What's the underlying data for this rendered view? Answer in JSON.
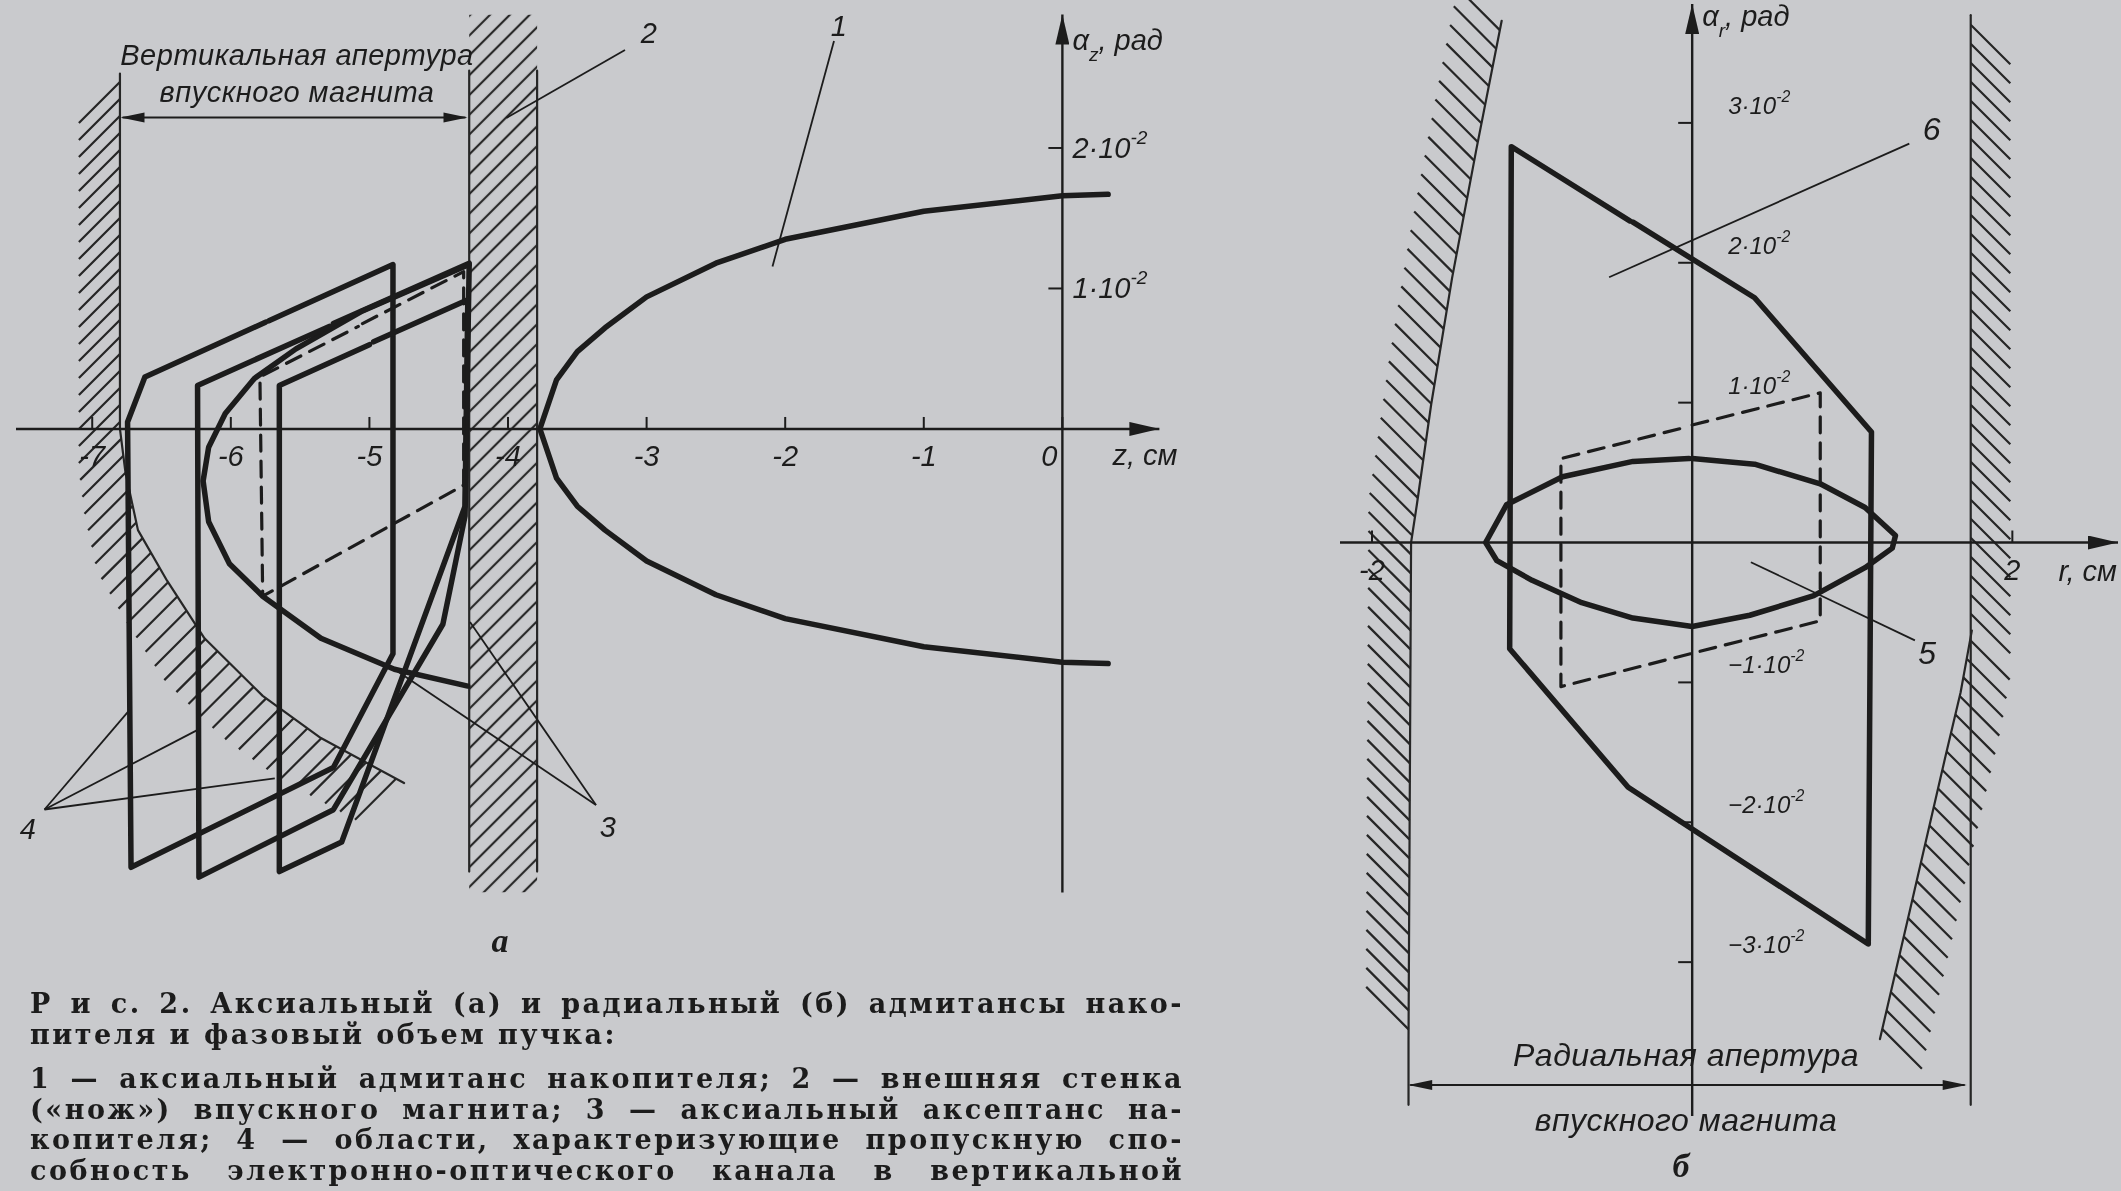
{
  "chart_data": [
    {
      "type": "line",
      "title": "а",
      "xlabel": "z, см",
      "ylabel": "α$_{z}$, рад",
      "xlim": [
        -7.55,
        0.7
      ],
      "ylim": [
        -0.033,
        0.0295
      ],
      "xticks": [
        -7,
        -6,
        -5,
        -4,
        -3,
        -2,
        -1,
        0
      ],
      "yticks": [
        {
          "value": 0.01,
          "label": "1·10$^{-2}$"
        },
        {
          "value": 0.02,
          "label": "2·10$^{-2}$"
        }
      ],
      "bands": [
        {
          "axis": "x",
          "from": -4.28,
          "to": -3.79,
          "color": "#2a2a2a"
        }
      ],
      "series": [
        {
          "color": "#1c1c1c",
          "x": [
            0.33,
            0,
            -1,
            -2,
            -2.5,
            -3,
            -3.3,
            -3.5,
            -3.65,
            -3.77,
            -3.65,
            -3.5,
            -3.3,
            -3,
            -2.5,
            -2,
            -1,
            0,
            0.33
          ],
          "values": [
            0.0167,
            0.0166,
            0.0155,
            0.0135,
            0.0118,
            0.0094,
            0.0072,
            0.0055,
            0.0035,
            0,
            -0.0035,
            -0.0055,
            -0.0072,
            -0.0094,
            -0.0118,
            -0.0135,
            -0.0155,
            -0.0166,
            -0.0167
          ]
        },
        {
          "color": "#262626",
          "x": [
            -6.8,
            -6.8,
            -6.76,
            -6.67,
            -6.46,
            -6.19,
            -5.77,
            -5.35,
            -4.75
          ],
          "values": [
            0.0253,
            0,
            -0.0031,
            -0.0072,
            -0.0108,
            -0.0149,
            -0.019,
            -0.022,
            -0.0252
          ]
        },
        {
          "color": "#262626",
          "x": [
            -4.28,
            -4.28
          ],
          "values": [
            0.0255,
            -0.0315
          ]
        },
        {
          "color": "#262626",
          "x": [
            -3.79,
            -3.79
          ],
          "values": [
            0.0255,
            -0.0315
          ]
        },
        {
          "color": "#1c1c1c",
          "x": [
            -4.28,
            -5.05,
            -5.53,
            -5.83,
            -6.04,
            -6.16,
            -6.2,
            -6.16,
            -6.01,
            -5.77,
            -5.35,
            -4.82,
            -4.29
          ],
          "values": [
            0.0117,
            0.0084,
            0.0057,
            0.0036,
            0.0011,
            -0.0013,
            -0.0037,
            -0.0066,
            -0.0096,
            -0.0119,
            -0.0149,
            -0.0171,
            -0.0183
          ]
        },
        {
          "color": "#1c1c1c",
          "x": [
            -5.725,
            -4.83,
            -4.83,
            -5.26,
            -6.72,
            -6.745,
            -6.62,
            -5.75
          ],
          "values": [
            0.0077,
            0.0117,
            -0.016,
            -0.0241,
            -0.0312,
            0.0005,
            0.0037,
            0.0076
          ]
        },
        {
          "color": "#1c1c1c",
          "x": [
            -5.26,
            -4.28,
            -4.31,
            -4.47,
            -5.26,
            -6.23,
            -6.24,
            -5.29
          ],
          "values": [
            0.0075,
            0.0118,
            -0.0062,
            -0.0139,
            -0.0271,
            -0.0319,
            0.0031,
            0.0073
          ]
        },
        {
          "color": "#1c1c1c",
          "x": [
            -4.97,
            -4.29,
            -4.31,
            -5.2,
            -5.65,
            -5.65,
            -5
          ],
          "values": [
            0.0062,
            0.0092,
            -0.0055,
            -0.0294,
            -0.0315,
            0.0031,
            0.006
          ]
        },
        {
          "color": "#1c1c1c",
          "line_style": "dashed",
          "x": [
            -5.05,
            -4.32,
            -4.32,
            -5.77,
            -5.79,
            -5.08
          ],
          "values": [
            0.0075,
            0.0112,
            -0.004,
            -0.0119,
            0.0037,
            0.0073
          ]
        }
      ],
      "annotations": [
        "Вертикальная апертура\nвпускного магнита",
        "1",
        "2",
        {
          "text": "3",
          "x": -4.82,
          "y": -0.0171
        },
        {
          "text": "4",
          "x": -6.73,
          "y": -0.02
        },
        "Р и с. 2. Аксиальный (а) и радиальный (б) адмитансы нако-\nпителя и фазовый объем пучка:",
        "1 — аксиальный адмитанс накопителя; 2 — внешняя стенка\n(«нож») впускного магнита; 3 — аксиальный аксептанс на-\nкопителя; 4 — области, характеризующие пропускную спо-\nсобность электронно-оптического канала в вертикальной"
      ]
    },
    {
      "type": "line",
      "title": "б",
      "xlabel": "r, см",
      "ylabel": "α$_{r}$, рад",
      "xlim": [
        -2.2,
        2.66
      ],
      "ylim": [
        -0.041,
        0.0385
      ],
      "xticks": [
        -2,
        2
      ],
      "yticks": [
        {
          "value": -0.03,
          "label": "−3·10$^{-2}$"
        },
        {
          "value": -0.02,
          "label": "−2·10$^{-2}$"
        },
        {
          "value": -0.01,
          "label": "−1·10$^{-2}$"
        },
        {
          "value": 0.01,
          "label": "1·10$^{-2}$"
        },
        {
          "value": 0.02,
          "label": "2·10$^{-2}$"
        },
        {
          "value": 0.03,
          "label": "3·10$^{-2}$"
        }
      ],
      "series": [
        {
          "color": "#262626",
          "x": [
            -1.19,
            -1.35,
            -1.5,
            -1.63,
            -1.72,
            -1.756,
            -1.772,
            -1.772
          ],
          "values": [
            0.0373,
            0.028,
            0.0189,
            0.0099,
            0.0027,
            0,
            -0.0356,
            -0.0402
          ]
        },
        {
          "color": "#262626",
          "x": [
            1.74,
            1.74,
            1.74
          ],
          "values": [
            0.0377,
            -0.0063,
            -0.0402
          ]
        },
        {
          "color": "#262626",
          "x": [
            1.747,
            1.677,
            1.582,
            1.473,
            1.362,
            1.252,
            1.173
          ],
          "values": [
            -0.0063,
            -0.0107,
            -0.0153,
            -0.0207,
            -0.0262,
            -0.0316,
            -0.0355
          ]
        },
        {
          "color": "#1c1c1c",
          "x": [
            -0.37,
            0.39,
            1.12,
            1.1,
            -0.4,
            -1.14,
            -1.13,
            -0.39
          ],
          "values": [
            0.0229,
            0.0175,
            0.0079,
            -0.0287,
            -0.0175,
            -0.0076,
            0.0283,
            0.023
          ]
        },
        {
          "color": "#1c1c1c",
          "line_style": "dashed",
          "x": [
            0,
            0.8,
            0.8,
            -0.82,
            -0.82,
            -0.02
          ],
          "values": [
            0.0084,
            0.0107,
            -0.0056,
            -0.0103,
            0.006,
            0.0083
          ]
        },
        {
          "color": "#1c1c1c",
          "x": [
            0,
            0.39,
            0.8,
            1.08,
            1.27,
            1.25,
            1.08,
            0.76,
            0.36,
            0,
            -0.37,
            -0.69,
            -1,
            -1.22,
            -1.29,
            -1.16,
            -0.81,
            -0.37,
            -0.02
          ],
          "values": [
            0.006,
            0.0056,
            0.0042,
            0.0025,
            0.0005,
            -0.0004,
            -0.0018,
            -0.0038,
            -0.0052,
            -0.006,
            -0.0054,
            -0.0043,
            -0.0027,
            -0.0013,
            0,
            0.0027,
            0.0047,
            0.0058,
            0.006
          ]
        }
      ],
      "annotations": [
        "Радиальная апертура\nвпускного магнита",
        "5",
        "6"
      ]
    }
  ]
}
